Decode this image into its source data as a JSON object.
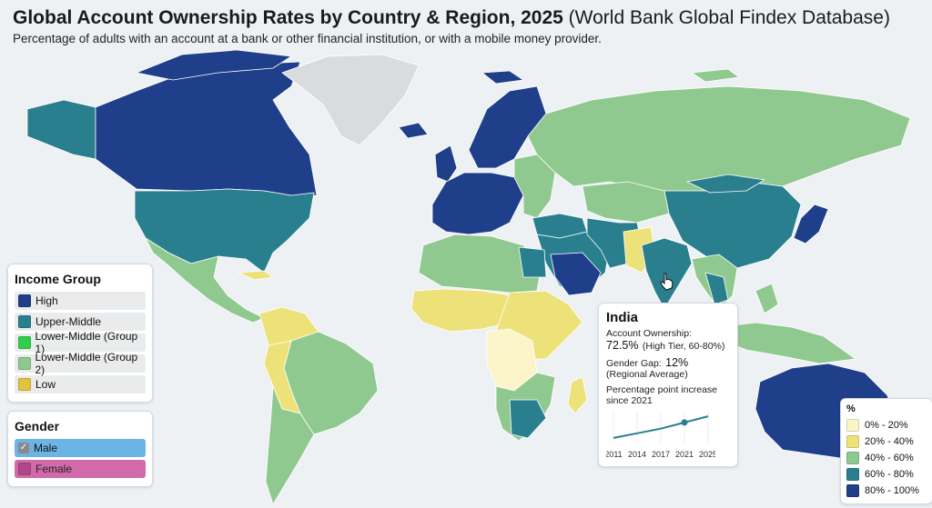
{
  "header": {
    "title": "Global Account Ownership Rates by Country & Region, 2025",
    "source": "(World Bank Global Findex Database)",
    "subtitle": "Percentage of adults with an account at a bank or other financial institution, or with a mobile money provider."
  },
  "income_group": {
    "title": "Income Group",
    "items": [
      {
        "label": "High",
        "color": "#1f3f8a"
      },
      {
        "label": "Upper-Middle",
        "color": "#2a7f8f"
      },
      {
        "label": "Lower-Middle (Group 1)",
        "color": "#2fcf4a"
      },
      {
        "label": "Lower-Middle (Group 2)",
        "color": "#8fc98f"
      },
      {
        "label": "Low",
        "color": "#e2c23f"
      }
    ]
  },
  "gender": {
    "title": "Gender",
    "items": [
      {
        "label": "Male",
        "checked": true
      },
      {
        "label": "Female",
        "checked": false
      }
    ]
  },
  "tooltip": {
    "country": "India",
    "ownership_label": "Account Ownership:",
    "ownership_value": "72.5%",
    "ownership_note": "(High Tier, 60-80%)",
    "gap_label": "Gender Gap:",
    "gap_value": "12%",
    "gap_note": "(Regional Average)",
    "trend_label": "Percentage point increase since 2021",
    "years": [
      "2011",
      "2014",
      "2017",
      "2021",
      "2025"
    ],
    "trend_values": [
      0.15,
      0.3,
      0.45,
      0.65,
      0.85
    ]
  },
  "legend": {
    "title": "%",
    "bins": [
      {
        "label": "0% - 20%",
        "color": "#fbf5c9"
      },
      {
        "label": "20% - 40%",
        "color": "#ede27a"
      },
      {
        "label": "40% - 60%",
        "color": "#8fc98f"
      },
      {
        "label": "60% - 80%",
        "color": "#2a7f8f"
      },
      {
        "label": "80% - 100%",
        "color": "#1f3f8a"
      }
    ]
  }
}
